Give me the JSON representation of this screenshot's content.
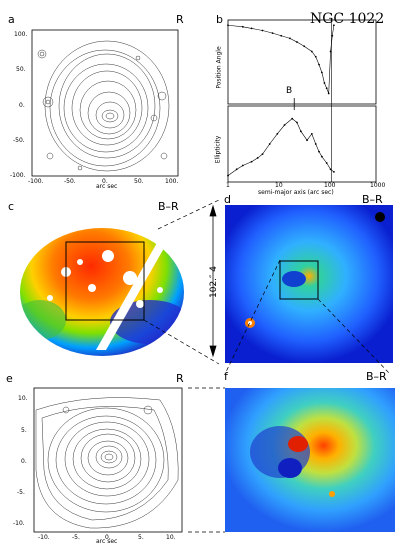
{
  "panels": {
    "a": {
      "letter": "a",
      "band": "R",
      "yticks": [
        "100.",
        "50.",
        "0.",
        "-50.",
        "-100."
      ],
      "xticks": [
        "-100.",
        "-50.",
        "0.",
        "50.",
        "100."
      ],
      "xlabel": "arc sec"
    },
    "b": {
      "letter": "b",
      "title": "NGC 1022",
      "upper_ylabel": "Position Angle",
      "upper_yticks": [
        "150",
        "100",
        "50",
        "0"
      ],
      "lower_ylabel": "Ellipticity",
      "lower_yticks": [
        "0.5",
        "0.4",
        "0.3",
        "0.2",
        "0.1"
      ],
      "xticks": [
        "1",
        "10",
        "100",
        "1000"
      ],
      "xlabel": "semi-major axis (arc sec)",
      "marker": "B"
    },
    "c": {
      "letter": "c",
      "band": "B–R"
    },
    "d": {
      "letter": "d",
      "band": "B–R",
      "scale": "102.″ 4"
    },
    "e": {
      "letter": "e",
      "band": "R",
      "yticks": [
        "10.",
        "5.",
        "0.",
        "-5.",
        "-10."
      ],
      "xticks": [
        "-10.",
        "-5.",
        "0.",
        "5.",
        "10."
      ],
      "xlabel": "arc sec"
    },
    "f": {
      "letter": "f",
      "band": "B–R"
    }
  },
  "chart_data": [
    {
      "type": "line",
      "panel": "b-upper",
      "xscale": "log",
      "xlim": [
        1,
        1000
      ],
      "ylim": [
        0,
        160
      ],
      "ylabel": "Position Angle",
      "x": [
        1,
        2,
        3,
        5,
        8,
        12,
        18,
        25,
        35,
        50,
        60,
        70,
        80,
        90,
        100,
        110,
        120,
        130,
        140
      ],
      "y": [
        150,
        147,
        144,
        140,
        135,
        130,
        125,
        118,
        110,
        100,
        90,
        75,
        60,
        40,
        30,
        20,
        100,
        130,
        150
      ]
    },
    {
      "type": "line",
      "panel": "b-lower",
      "xscale": "log",
      "xlim": [
        1,
        1000
      ],
      "ylim": [
        0,
        0.6
      ],
      "ylabel": "Ellipticity",
      "xlabel": "semi-major axis (arc sec)",
      "x": [
        1,
        1.5,
        2,
        3,
        4,
        5,
        7,
        10,
        14,
        20,
        25,
        30,
        40,
        50,
        60,
        70,
        80,
        100,
        120,
        140
      ],
      "y": [
        0.05,
        0.1,
        0.13,
        0.16,
        0.19,
        0.22,
        0.3,
        0.38,
        0.45,
        0.5,
        0.47,
        0.4,
        0.33,
        0.38,
        0.3,
        0.24,
        0.2,
        0.15,
        0.1,
        0.08
      ]
    }
  ]
}
